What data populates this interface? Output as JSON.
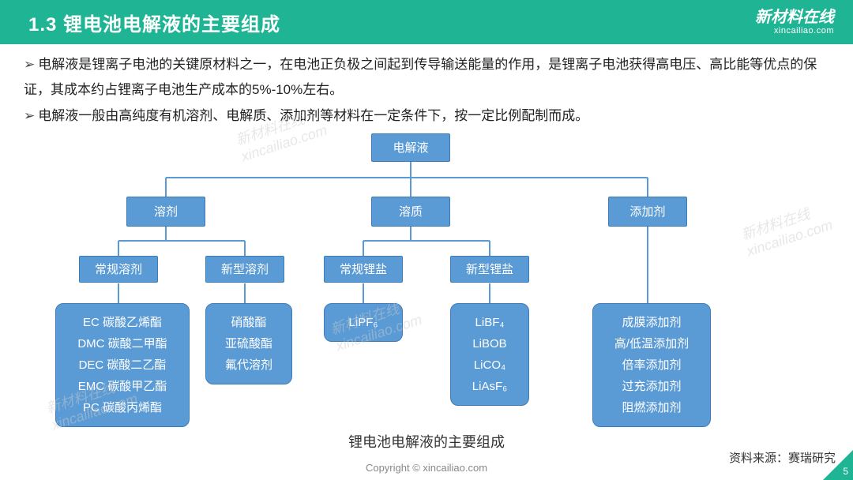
{
  "header": {
    "title": "1.3 锂电池电解液的主要组成",
    "logo_top": "新材料在线",
    "logo_bot": "xincailiao.com"
  },
  "bullets": {
    "b1": "电解液是锂离子电池的关键原材料之一，在电池正负极之间起到传导输送能量的作用，是锂离子电池获得高电压、高比能等优点的保证，其成本约占锂离子电池生产成本的5%-10%左右。",
    "b2": "电解液一般由高纯度有机溶剂、电解质、添加剂等材料在一定条件下，按一定比例配制而成。"
  },
  "tree": {
    "root": "电解液",
    "l1": {
      "a": "溶剂",
      "b": "溶质",
      "c": "添加剂"
    },
    "l2": {
      "a1": "常规溶剂",
      "a2": "新型溶剂",
      "b1": "常规锂盐",
      "b2": "新型锂盐"
    },
    "leaf": {
      "a1": [
        "EC  碳酸乙烯酯",
        "DMC 碳酸二甲酯",
        "DEC  碳酸二乙酯",
        "EMC 碳酸甲乙酯",
        "PC  碳酸丙烯酯"
      ],
      "a2": [
        "硝酸酯",
        "亚硫酸酯",
        "氟代溶剂"
      ],
      "b1": [
        "LiPF₆"
      ],
      "b2": [
        "LiBF₄",
        "LiBOB",
        "LiCO₄",
        "LiAsF₆"
      ],
      "c": [
        "成膜添加剂",
        "高/低温添加剂",
        "倍率添加剂",
        "过充添加剂",
        "阻燃添加剂"
      ]
    },
    "caption": "锂电池电解液的主要组成"
  },
  "footer": {
    "source": "资料来源：赛瑞研究",
    "copyright": "Copyright © xincailiao.com",
    "page": "5"
  },
  "watermark": {
    "top": "新材料在线",
    "bot": "xincailiao.com"
  },
  "style": {
    "node_color": "#5b9bd5",
    "node_border": "#3d7cb8",
    "line_color": "#5b9bd5",
    "header_bg": "#1fb594",
    "text_color": "#222",
    "font": "Microsoft YaHei"
  }
}
